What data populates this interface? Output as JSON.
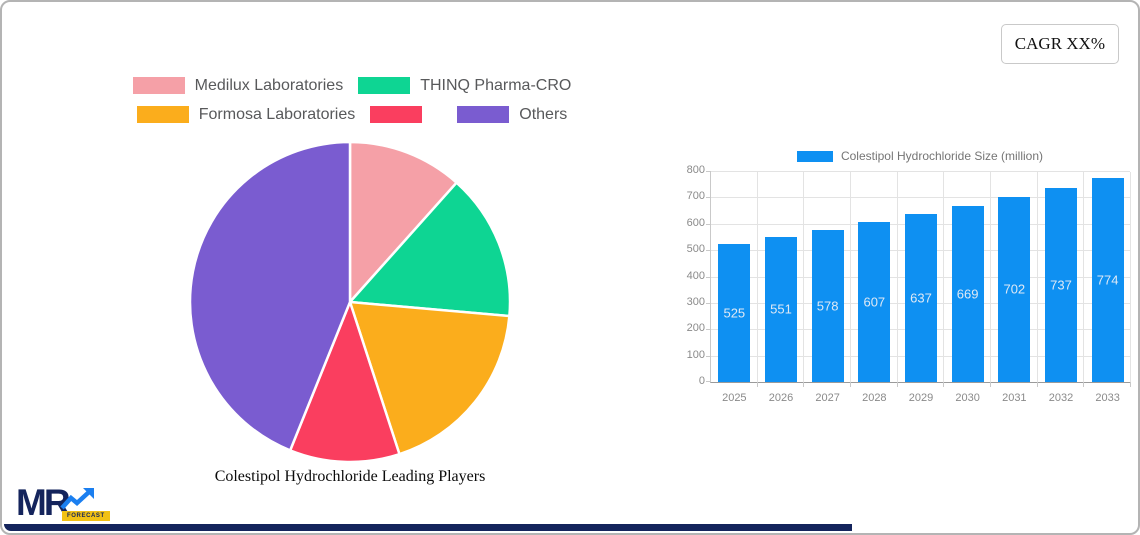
{
  "card": {
    "cagr_badge": "CAGR XX%"
  },
  "pie_legend": {
    "rows": [
      [
        {
          "label": "Medilux Laboratories",
          "color": "#F5A0A7"
        },
        {
          "label": "THINQ Pharma-CRO",
          "color": "#0ED593"
        }
      ],
      [
        {
          "label": "Formosa Laboratories",
          "color": "#FBAD1C"
        },
        {
          "label": "",
          "color": "#FA3E5F"
        },
        {
          "label": "Others",
          "color": "#7A5CD0"
        }
      ]
    ]
  },
  "chart_data": [
    {
      "type": "pie",
      "title": "Colestipol Hydrochloride Leading Players",
      "labels": [
        "Medilux Laboratories",
        "THINQ Pharma-CRO",
        "Formosa Laboratories",
        "",
        "Others"
      ],
      "values": [
        11.6,
        14.8,
        18.6,
        11.1,
        43.9
      ],
      "colors": [
        "#F5A0A7",
        "#0ED593",
        "#FBAD1C",
        "#FA3E5F",
        "#7A5CD0"
      ],
      "legend_position": "top",
      "start_angle_deg": 0,
      "direction": "clockwise"
    },
    {
      "type": "bar",
      "categories": [
        "2025",
        "2026",
        "2027",
        "2028",
        "2029",
        "2030",
        "2031",
        "2032",
        "2033"
      ],
      "series": [
        {
          "name": "Colestipol Hydrochloride Size (million)",
          "values": [
            525,
            551,
            578,
            607,
            637,
            669,
            702,
            737,
            774
          ]
        }
      ],
      "ylim": [
        0,
        800
      ],
      "yticks": [
        0,
        100,
        200,
        300,
        400,
        500,
        600,
        700,
        800
      ],
      "bar_color": "#0E90F2",
      "value_label_color": "#dfe9f5",
      "grid": true,
      "legend_position": "top"
    }
  ],
  "logo": {
    "mr": "MR",
    "forecast": "FORECAST"
  }
}
